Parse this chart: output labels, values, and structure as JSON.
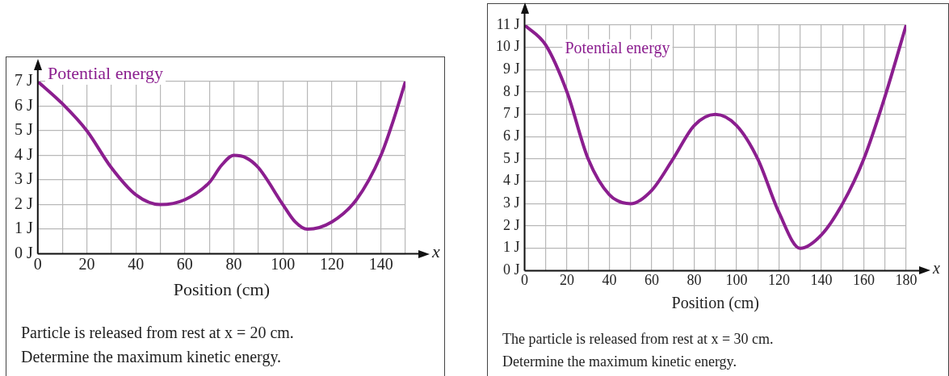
{
  "chart_data": [
    {
      "type": "line",
      "xlabel": "Position (cm)",
      "x": [
        0,
        10,
        20,
        30,
        40,
        50,
        60,
        70,
        75,
        80,
        85,
        90,
        100,
        105,
        110,
        120,
        130,
        140,
        145,
        150
      ],
      "series": [
        {
          "name": "Potential energy",
          "color": "#8b1e8f",
          "values": [
            7,
            6.1,
            5,
            3.5,
            2.4,
            2,
            2.2,
            2.9,
            3.6,
            4,
            3.9,
            3.5,
            2,
            1.3,
            1,
            1.3,
            2.2,
            4,
            5.4,
            7
          ]
        }
      ],
      "xlim": [
        0,
        150
      ],
      "xticks": [
        0,
        {
          "value": 10,
          "label": null
        },
        20,
        {
          "value": 30,
          "label": null
        },
        40,
        {
          "value": 50,
          "label": null
        },
        60,
        {
          "value": 70,
          "label": null
        },
        80,
        {
          "value": 90,
          "label": null
        },
        100,
        {
          "value": 110,
          "label": null
        },
        120,
        {
          "value": 130,
          "label": null
        },
        140,
        {
          "value": 150,
          "label": null
        }
      ],
      "ylim": [
        0,
        7
      ],
      "yticks": [
        {
          "value": 0,
          "label": "0 J"
        },
        {
          "value": 1,
          "label": "1 J"
        },
        {
          "value": 2,
          "label": "2 J"
        },
        {
          "value": 3,
          "label": "3 J"
        },
        {
          "value": 4,
          "label": "4 J"
        },
        {
          "value": 5,
          "label": "5 J"
        },
        {
          "value": 6,
          "label": "6 J"
        },
        {
          "value": 7,
          "label": "7 J"
        }
      ],
      "grid": true,
      "annotations": [
        "x",
        "Particle is released from rest at x = 20 cm.",
        "Determine the maximum kinetic energy."
      ]
    },
    {
      "type": "line",
      "xlabel": "Position (cm)",
      "x": [
        0,
        10,
        20,
        30,
        40,
        50,
        60,
        70,
        80,
        90,
        100,
        110,
        120,
        130,
        140,
        150,
        160,
        170,
        180
      ],
      "series": [
        {
          "name": "Potential energy",
          "color": "#8b1e8f",
          "values": [
            11,
            10.1,
            8,
            5,
            3.4,
            3,
            3.6,
            5,
            6.5,
            7,
            6.5,
            5,
            2.6,
            1,
            1.6,
            3,
            5,
            7.8,
            11
          ]
        }
      ],
      "xlim": [
        0,
        180
      ],
      "xticks": [
        0,
        {
          "value": 10,
          "label": null
        },
        20,
        {
          "value": 30,
          "label": null
        },
        40,
        {
          "value": 50,
          "label": null
        },
        60,
        {
          "value": 70,
          "label": null
        },
        80,
        {
          "value": 90,
          "label": null
        },
        100,
        {
          "value": 110,
          "label": null
        },
        120,
        {
          "value": 130,
          "label": null
        },
        140,
        {
          "value": 150,
          "label": null
        },
        160,
        {
          "value": 170,
          "label": null
        },
        180
      ],
      "ylim": [
        0,
        11
      ],
      "yticks": [
        {
          "value": 0,
          "label": "0 J"
        },
        {
          "value": 1,
          "label": "1 J"
        },
        {
          "value": 2,
          "label": "2 J"
        },
        {
          "value": 3,
          "label": "3 J"
        },
        {
          "value": 4,
          "label": "4 J"
        },
        {
          "value": 5,
          "label": "5 J"
        },
        {
          "value": 6,
          "label": "6 J"
        },
        {
          "value": 7,
          "label": "7 J"
        },
        {
          "value": 8,
          "label": "8 J"
        },
        {
          "value": 9,
          "label": "9 J"
        },
        {
          "value": 10,
          "label": "10 J"
        },
        {
          "value": 11,
          "label": "11 J"
        }
      ],
      "grid": true,
      "annotations": [
        "x",
        "The particle is released from rest at x = 30 cm.",
        "Determine the maximum kinetic energy."
      ]
    }
  ]
}
